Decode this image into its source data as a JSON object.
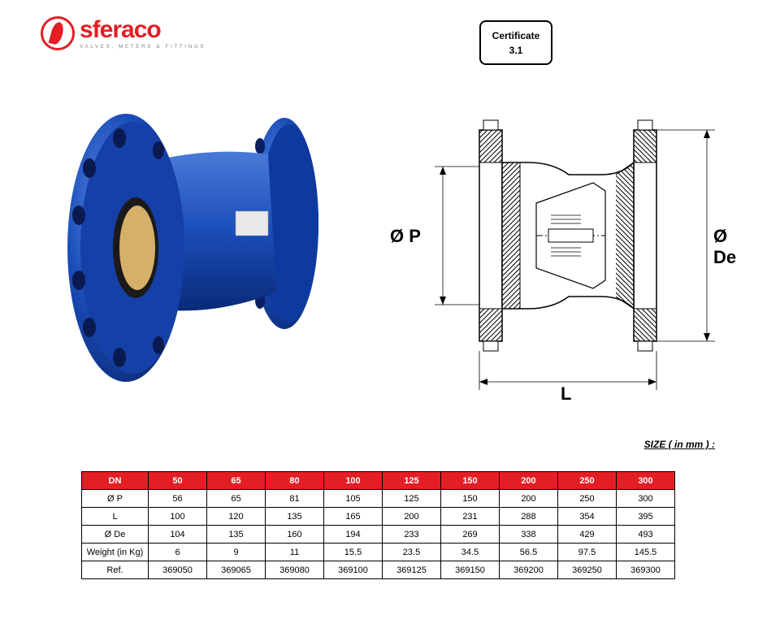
{
  "logo": {
    "brand": "sferaco",
    "tagline": "VALVES, METERS & FITTINGS",
    "brand_color": "#e31e24"
  },
  "certificate": {
    "label": "Certificate",
    "value": "3.1"
  },
  "diagram": {
    "label_P": "Ø P",
    "label_De": "Ø De",
    "label_L": "L"
  },
  "size_caption": "SIZE ( in mm ) :",
  "table": {
    "header_row": [
      "DN",
      "50",
      "65",
      "80",
      "100",
      "125",
      "150",
      "200",
      "250",
      "300"
    ],
    "rows": [
      {
        "label": "Ø P",
        "cells": [
          "56",
          "65",
          "81",
          "105",
          "125",
          "150",
          "200",
          "250",
          "300"
        ]
      },
      {
        "label": "L",
        "cells": [
          "100",
          "120",
          "135",
          "165",
          "200",
          "231",
          "288",
          "354",
          "395"
        ]
      },
      {
        "label": "Ø De",
        "cells": [
          "104",
          "135",
          "160",
          "194",
          "233",
          "269",
          "338",
          "429",
          "493"
        ]
      },
      {
        "label": "Weight (in Kg)",
        "cells": [
          "6",
          "9",
          "11",
          "15.5",
          "23.5",
          "34.5",
          "56.5",
          "97.5",
          "145.5"
        ]
      },
      {
        "label": "Ref.",
        "cells": [
          "369050",
          "369065",
          "369080",
          "369100",
          "369125",
          "369150",
          "369200",
          "369250",
          "369300"
        ]
      }
    ],
    "header_bg": "#e31e24",
    "header_fg": "#ffffff"
  },
  "photo": {
    "valve_color": "#1a4db8",
    "valve_highlight": "#3d6fd8"
  }
}
